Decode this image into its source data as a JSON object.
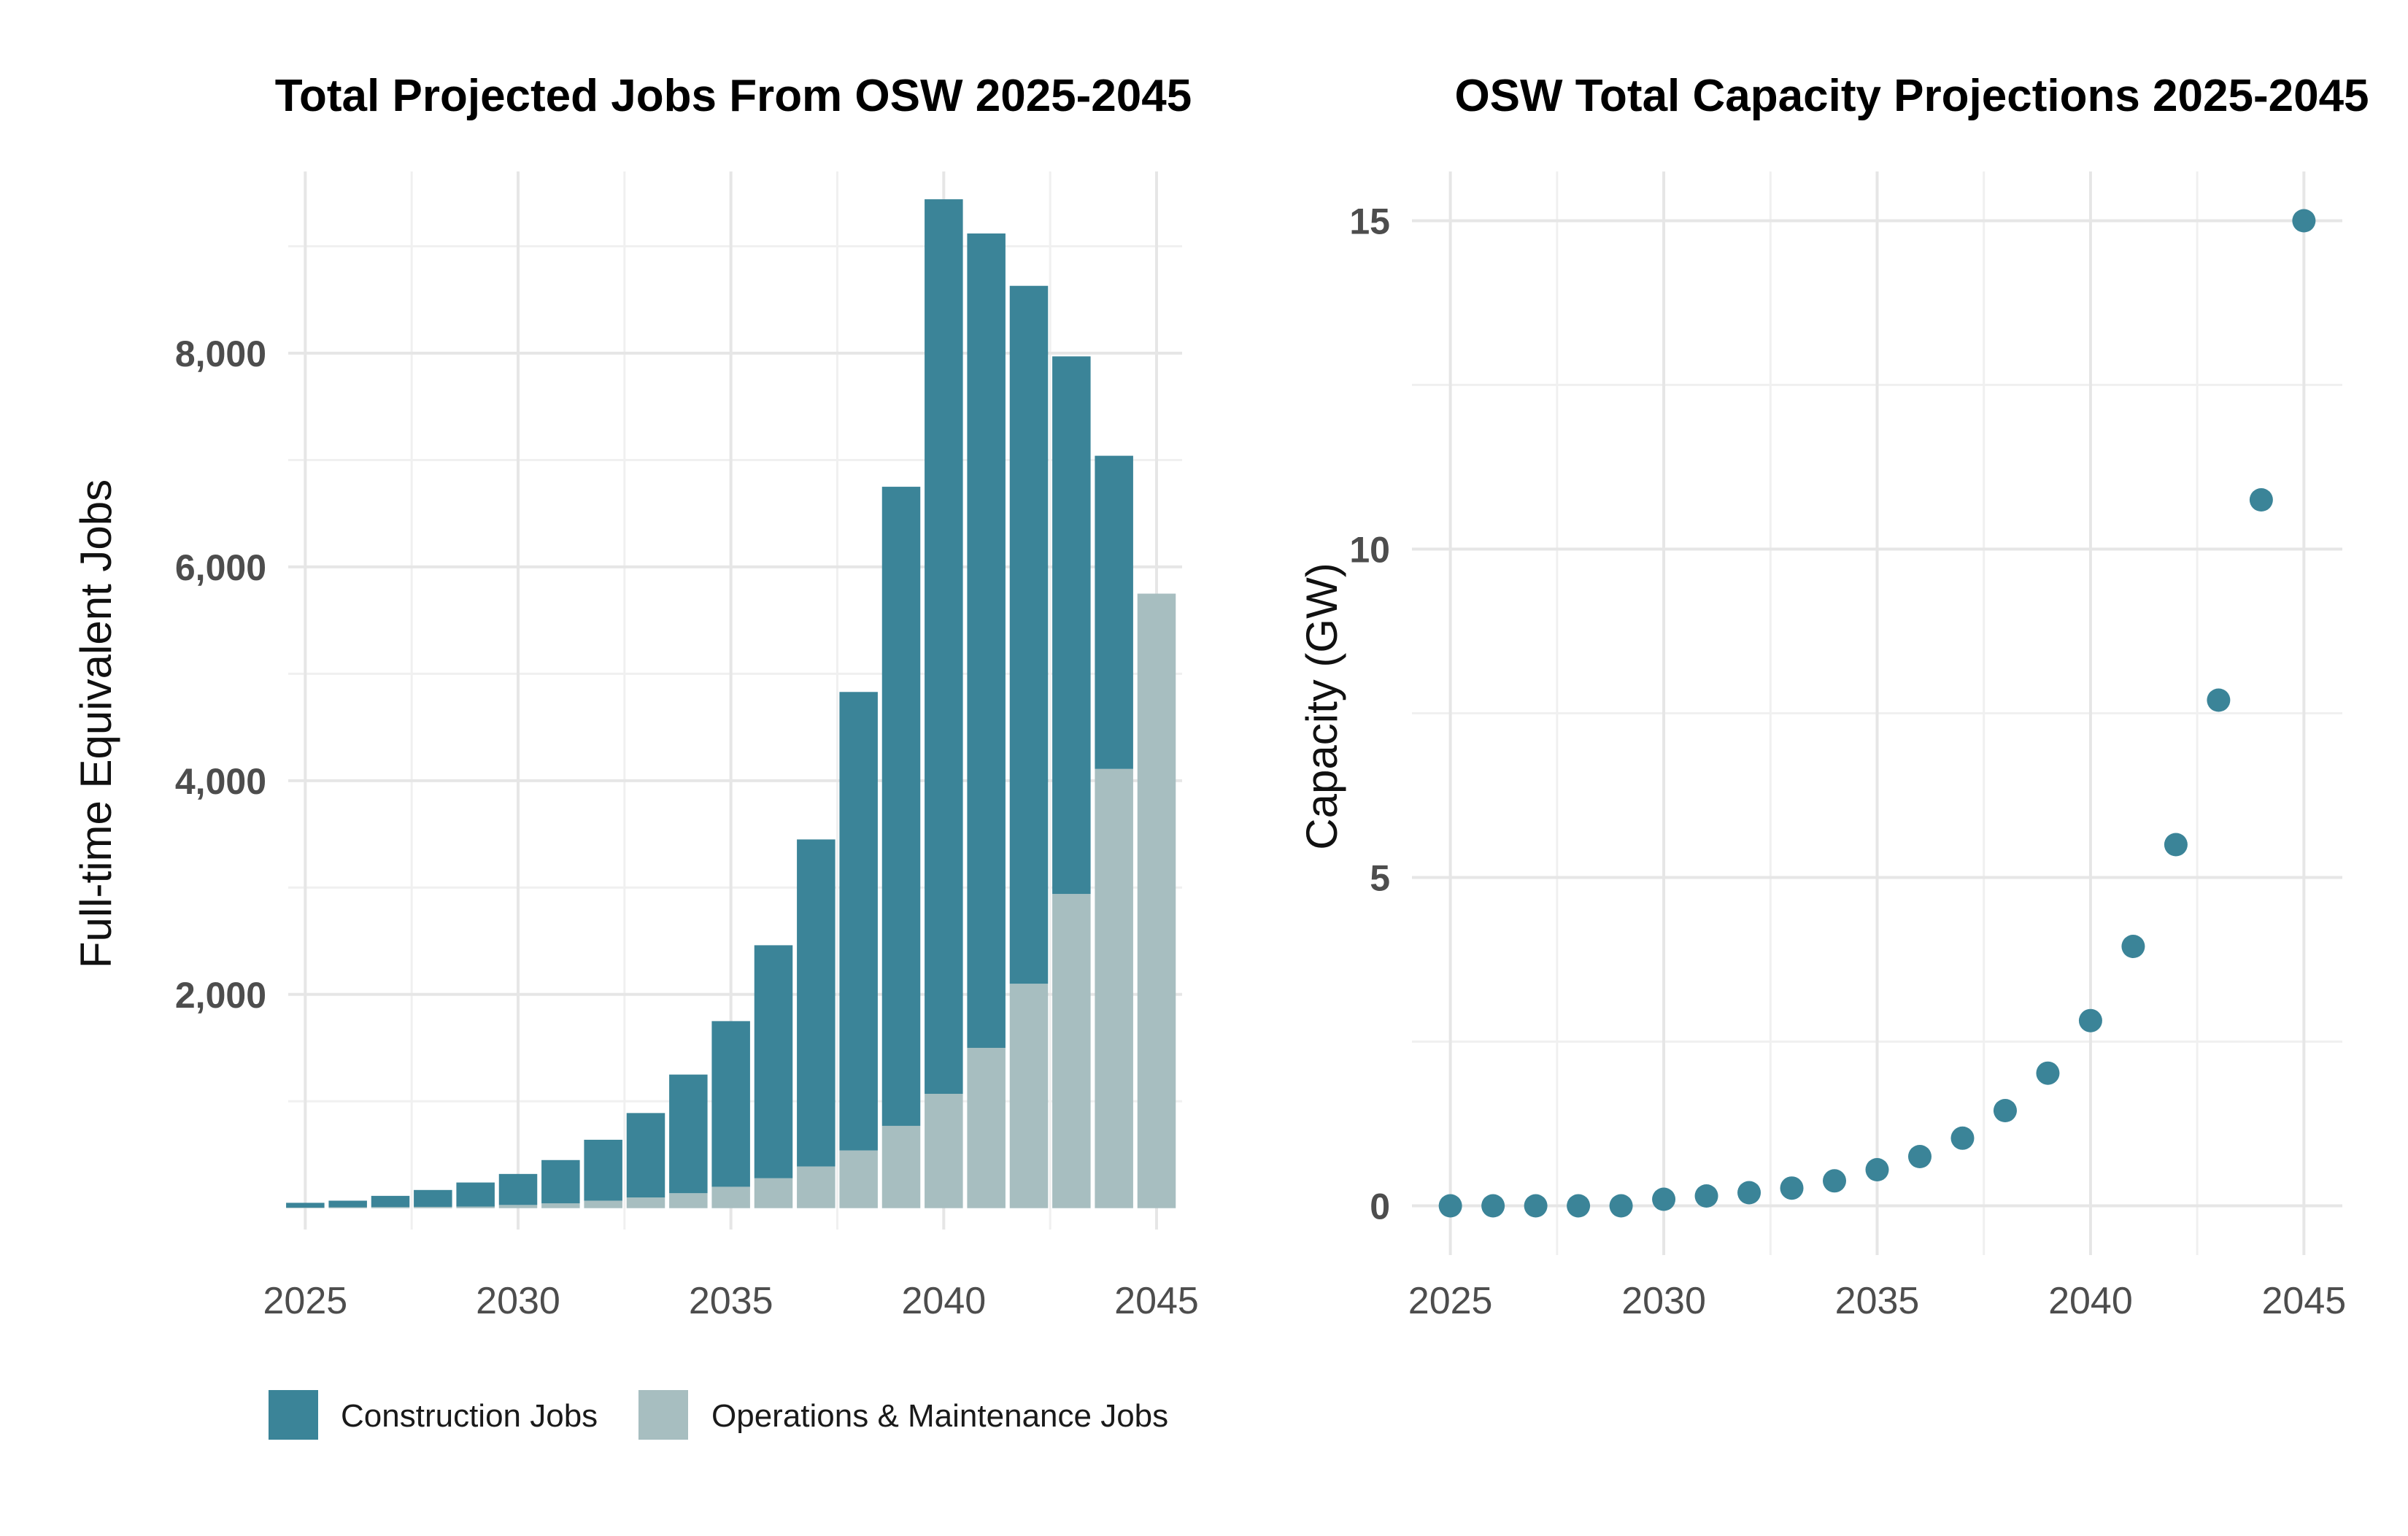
{
  "chart_data": [
    {
      "type": "bar",
      "stacked": true,
      "title": "Total Projected Jobs From OSW 2025-2045",
      "xlabel": "",
      "ylabel": "Full-time Equivalent Jobs",
      "x": [
        2025,
        2026,
        2027,
        2028,
        2029,
        2030,
        2031,
        2032,
        2033,
        2034,
        2035,
        2036,
        2037,
        2038,
        2039,
        2040,
        2041,
        2042,
        2043,
        2044,
        2045
      ],
      "series": [
        {
          "name": "Operations & Maintenance Jobs",
          "color": "#a7bec0",
          "values": [
            5,
            8,
            10,
            12,
            15,
            30,
            45,
            70,
            100,
            140,
            200,
            280,
            390,
            540,
            770,
            1070,
            1500,
            2100,
            2940,
            4110,
            5750
          ]
        },
        {
          "name": "Construction Jobs",
          "color": "#3b8498",
          "values": [
            45,
            62,
            105,
            158,
            225,
            290,
            405,
            570,
            790,
            1110,
            1550,
            2180,
            3060,
            4290,
            5980,
            8370,
            7620,
            6530,
            5030,
            2930,
            0
          ]
        }
      ],
      "x_ticks": [
        "2025",
        "2030",
        "2035",
        "2040",
        "2045"
      ],
      "y_ticks": [
        "2,000",
        "4,000",
        "6,000",
        "8,000"
      ],
      "ylim": [
        -200,
        9700
      ],
      "xlim": [
        2024.6,
        2045.6
      ],
      "grid": true,
      "legend": {
        "position": "bottom",
        "entries": [
          {
            "label": "Construction Jobs",
            "color": "#3b8498"
          },
          {
            "label": "Operations & Maintenance Jobs",
            "color": "#a7bec0"
          }
        ]
      }
    },
    {
      "type": "scatter",
      "title": "OSW Total Capacity Projections 2025-2045",
      "xlabel": "",
      "ylabel": "Capacity (GW)",
      "color": "#3b8498",
      "x": [
        2025,
        2026,
        2027,
        2028,
        2029,
        2030,
        2031,
        2032,
        2033,
        2034,
        2035,
        2036,
        2037,
        2038,
        2039,
        2040,
        2041,
        2042,
        2043,
        2044,
        2045
      ],
      "y": [
        0.0,
        0.0,
        0.0,
        0.0,
        0.0,
        0.1,
        0.15,
        0.2,
        0.27,
        0.38,
        0.55,
        0.75,
        1.03,
        1.45,
        2.02,
        2.82,
        3.95,
        5.5,
        7.7,
        10.75,
        15.0
      ],
      "x_ticks": [
        "2025",
        "2030",
        "2035",
        "2040",
        "2045"
      ],
      "y_ticks": [
        "0",
        "5",
        "10",
        "15"
      ],
      "ylim": [
        -0.75,
        15.75
      ],
      "xlim": [
        2024.1,
        2045.9
      ],
      "grid": true
    }
  ]
}
